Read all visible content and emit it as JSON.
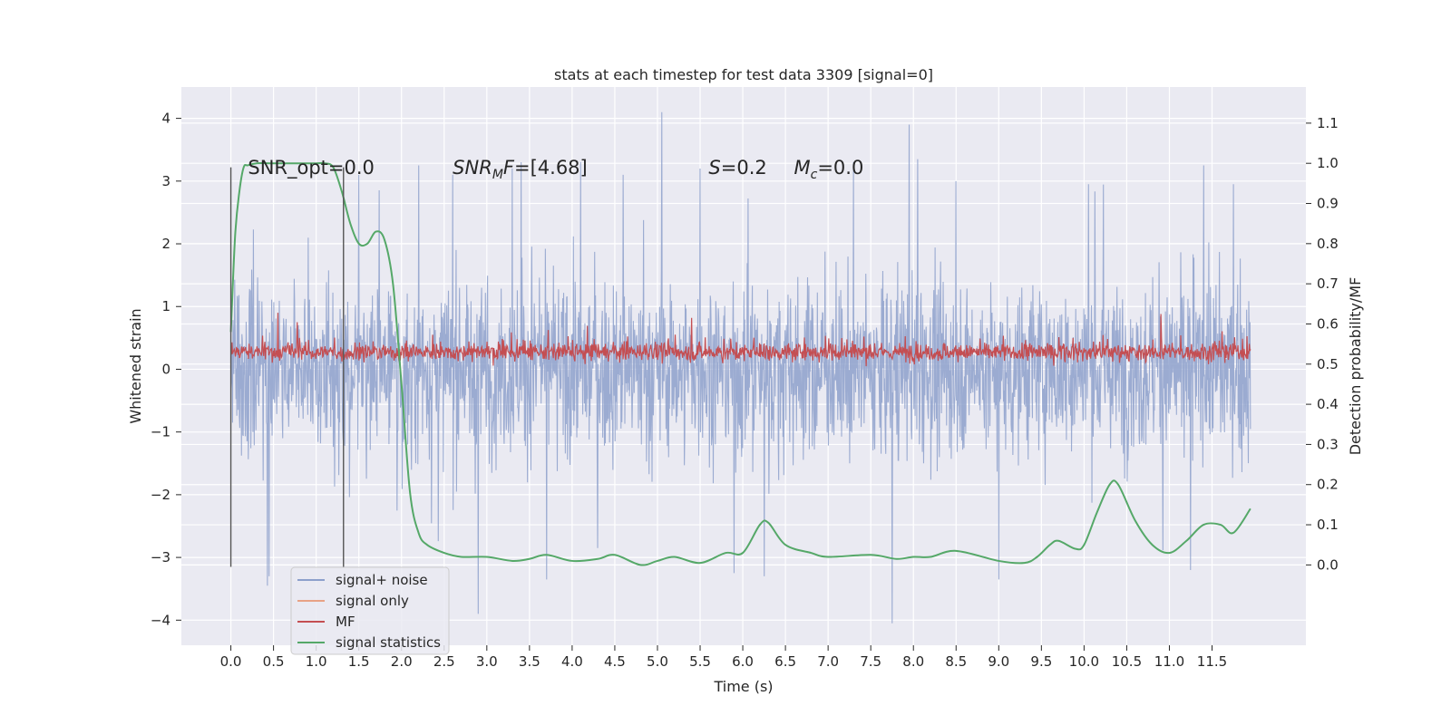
{
  "chart_data": {
    "type": "line",
    "title": "stats at each timestep for test data 3309 [signal=0]",
    "xlabel": "Time (s)",
    "ylabel": "Whitened strain",
    "y2label": "Detection probability/MF",
    "xlim": [
      -0.58,
      12.6
    ],
    "ylim": [
      -4.4,
      4.5
    ],
    "y2lim": [
      -0.2,
      1.19
    ],
    "x_ticks": [
      0.0,
      0.5,
      1.0,
      1.5,
      2.0,
      2.5,
      3.0,
      3.5,
      4.0,
      4.5,
      5.0,
      5.5,
      6.0,
      6.5,
      7.0,
      7.5,
      8.0,
      8.5,
      9.0,
      9.5,
      10.0,
      10.5,
      11.0,
      11.5
    ],
    "x_tick_labels": [
      "0.0",
      "0.5",
      "1.0",
      "1.5",
      "2.0",
      "2.5",
      "3.0",
      "3.5",
      "4.0",
      "4.5",
      "5.0",
      "5.5",
      "6.0",
      "6.5",
      "7.0",
      "7.5",
      "8.0",
      "8.5",
      "9.0",
      "9.5",
      "10.0",
      "10.5",
      "11.0",
      "11.5"
    ],
    "y_ticks": [
      -4,
      -3,
      -2,
      -1,
      0,
      1,
      2,
      3,
      4
    ],
    "y_tick_labels": [
      "−4",
      "−3",
      "−2",
      "−1",
      "0",
      "1",
      "2",
      "3",
      "4"
    ],
    "y2_ticks": [
      0.0,
      0.1,
      0.2,
      0.3,
      0.4,
      0.5,
      0.6,
      0.7,
      0.8,
      0.9,
      1.0,
      1.1
    ],
    "y2_tick_labels": [
      "0.0",
      "0.1",
      "0.2",
      "0.3",
      "0.4",
      "0.5",
      "0.6",
      "0.7",
      "0.8",
      "0.9",
      "1.0",
      "1.1"
    ],
    "grid": true,
    "legend_position": "lower-left",
    "annotations": [
      {
        "text": "SNR_opt=0.0",
        "x": 0.2,
        "y": 3.2
      },
      {
        "text": "SNR_MF=[4.68]",
        "base": "SNR",
        "sub": "M",
        "rest": "F=[4.68]",
        "x": 2.6,
        "y": 3.2
      },
      {
        "text": "S=0.2",
        "base": "S",
        "rest": "=0.2",
        "x": 5.6,
        "y": 3.2
      },
      {
        "text": "M_c=0.0",
        "base": "M",
        "sub": "c",
        "rest": "=0.0",
        "x": 6.6,
        "y": 3.2
      }
    ],
    "vlines": [
      {
        "x": 0.0,
        "y0": -3.15,
        "y1": 3.22
      },
      {
        "x": 1.32,
        "y0": -3.15,
        "y1": 3.22
      }
    ],
    "series": [
      {
        "name": "signal+ noise",
        "color": "#8da0cb",
        "axis": "left",
        "t_range": [
          0.0,
          11.95
        ],
        "envelope_typical": [
          -1.5,
          1.8
        ],
        "spikes": [
          {
            "x": 0.45,
            "y": -3.3
          },
          {
            "x": 0.43,
            "y": -3.45
          },
          {
            "x": 1.5,
            "y": 3.1
          },
          {
            "x": 2.2,
            "y": 3.25
          },
          {
            "x": 2.6,
            "y": 3.1
          },
          {
            "x": 2.9,
            "y": -3.9
          },
          {
            "x": 3.3,
            "y": 3.2
          },
          {
            "x": 3.4,
            "y": 3.3
          },
          {
            "x": 3.7,
            "y": -3.35
          },
          {
            "x": 4.1,
            "y": 3.3
          },
          {
            "x": 4.3,
            "y": -2.85
          },
          {
            "x": 4.6,
            "y": 3.1
          },
          {
            "x": 5.05,
            "y": 4.1
          },
          {
            "x": 5.5,
            "y": 3.2
          },
          {
            "x": 5.9,
            "y": -3.25
          },
          {
            "x": 6.25,
            "y": -3.3
          },
          {
            "x": 7.3,
            "y": 3.3
          },
          {
            "x": 7.75,
            "y": -4.05
          },
          {
            "x": 7.95,
            "y": 3.9
          },
          {
            "x": 8.05,
            "y": 3.35
          },
          {
            "x": 8.5,
            "y": 3.0
          },
          {
            "x": 9.0,
            "y": -3.35
          },
          {
            "x": 10.05,
            "y": 2.95
          },
          {
            "x": 11.25,
            "y": -3.2
          },
          {
            "x": 11.4,
            "y": 3.25
          },
          {
            "x": 11.75,
            "y": 2.95
          }
        ]
      },
      {
        "name": "signal only",
        "color": "#e8a285",
        "axis": "left",
        "values": "none visible"
      },
      {
        "name": "MF",
        "color": "#c44e52",
        "axis": "left",
        "t_range": [
          0.0,
          11.95
        ],
        "envelope_typical": [
          0.0,
          0.55
        ],
        "spikes": [
          {
            "x": 0.55,
            "y": 0.9
          },
          {
            "x": 0.78,
            "y": 0.75
          },
          {
            "x": 5.4,
            "y": 0.82
          },
          {
            "x": 10.9,
            "y": 0.88
          }
        ]
      },
      {
        "name": "signal statistics",
        "color": "#55a868",
        "axis": "right",
        "x": [
          0.0,
          0.05,
          0.1,
          0.15,
          0.2,
          0.3,
          0.5,
          0.8,
          1.0,
          1.1,
          1.2,
          1.3,
          1.4,
          1.5,
          1.6,
          1.7,
          1.8,
          1.9,
          2.0,
          2.1,
          2.2,
          2.3,
          2.5,
          2.7,
          3.0,
          3.3,
          3.5,
          3.7,
          4.0,
          4.3,
          4.5,
          4.8,
          5.0,
          5.2,
          5.5,
          5.8,
          6.0,
          6.2,
          6.3,
          6.5,
          6.8,
          7.0,
          7.5,
          7.8,
          8.0,
          8.2,
          8.5,
          9.0,
          9.3,
          9.45,
          9.6,
          9.7,
          9.9,
          10.0,
          10.15,
          10.3,
          10.4,
          10.6,
          10.8,
          11.0,
          11.2,
          11.4,
          11.6,
          11.75,
          11.95
        ],
        "values": [
          0.58,
          0.82,
          0.93,
          0.99,
          0.995,
          1.0,
          1.0,
          1.0,
          1.0,
          1.0,
          0.99,
          0.93,
          0.85,
          0.8,
          0.8,
          0.83,
          0.81,
          0.7,
          0.45,
          0.18,
          0.08,
          0.05,
          0.03,
          0.02,
          0.02,
          0.01,
          0.015,
          0.025,
          0.01,
          0.015,
          0.025,
          0.0,
          0.01,
          0.02,
          0.005,
          0.03,
          0.03,
          0.1,
          0.105,
          0.05,
          0.03,
          0.02,
          0.025,
          0.015,
          0.02,
          0.02,
          0.035,
          0.01,
          0.005,
          0.02,
          0.05,
          0.06,
          0.04,
          0.05,
          0.13,
          0.2,
          0.2,
          0.11,
          0.05,
          0.03,
          0.06,
          0.1,
          0.1,
          0.08,
          0.14
        ]
      }
    ]
  }
}
